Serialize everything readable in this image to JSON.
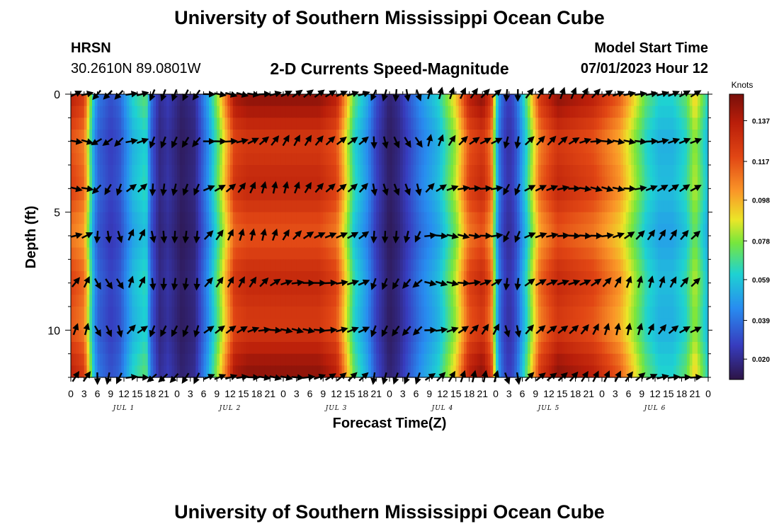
{
  "header": {
    "title": "University of Southern Mississippi Ocean Cube",
    "station_id": "HRSN",
    "station_coords": "30.2610N  89.0801W",
    "chart_title": "2-D Currents Speed-Magnitude",
    "model_start_label": "Model Start Time",
    "model_start_value": "07/01/2023 Hour 12"
  },
  "footer": {
    "title": "University of Southern Mississippi Ocean Cube"
  },
  "chart_data": {
    "type": "heatmap",
    "title": "2-D Currents Speed-Magnitude",
    "xlabel": "Forecast Time(Z)",
    "ylabel": "Depth (ft)",
    "colorbar_label": "Knots",
    "colorbar_ticks": [
      "0.020",
      "0.039",
      "0.059",
      "0.078",
      "0.098",
      "0.117",
      "0.137"
    ],
    "colorbar_tick_values": [
      0.02,
      0.039,
      0.059,
      0.078,
      0.098,
      0.117,
      0.137
    ],
    "colorbar_range": [
      0.01,
      0.15
    ],
    "x_range_hours": [
      0,
      144
    ],
    "x_tick_labels": [
      "0",
      "3",
      "6",
      "9",
      "12",
      "15",
      "18",
      "21",
      "0",
      "3",
      "6",
      "9",
      "12",
      "15",
      "18",
      "21",
      "0",
      "3",
      "6",
      "9",
      "12",
      "15",
      "18",
      "21",
      "0",
      "3",
      "6",
      "9",
      "12",
      "15",
      "18",
      "21",
      "0",
      "3",
      "6",
      "9",
      "12",
      "15",
      "18",
      "21",
      "0",
      "3",
      "6",
      "9",
      "12",
      "15",
      "18",
      "21",
      "0"
    ],
    "day_labels": [
      "JUL 1",
      "JUL 2",
      "JUL 3",
      "JUL 4",
      "JUL 5",
      "JUL 6"
    ],
    "y_range_ft": [
      0,
      12
    ],
    "y_ticks": [
      0,
      5,
      10
    ],
    "y_tick_labels": [
      "0",
      "5",
      "10"
    ],
    "y_reversed": true,
    "speed_profile": {
      "hours": [
        0,
        3,
        5,
        6,
        9,
        11,
        14,
        17,
        18,
        20,
        22,
        25,
        28,
        31,
        34,
        37,
        40,
        45,
        50,
        56,
        60,
        64,
        67,
        69,
        71,
        72,
        74,
        76,
        79,
        83,
        87,
        90,
        93,
        95,
        96,
        97,
        98,
        99,
        100,
        101,
        103,
        106,
        110,
        114,
        118,
        121,
        124,
        127,
        130,
        133,
        136,
        139,
        141,
        144
      ],
      "knots": [
        0.13,
        0.12,
        0.06,
        0.04,
        0.03,
        0.035,
        0.06,
        0.07,
        0.04,
        0.02,
        0.025,
        0.015,
        0.02,
        0.05,
        0.09,
        0.135,
        0.14,
        0.14,
        0.14,
        0.14,
        0.13,
        0.07,
        0.05,
        0.03,
        0.02,
        0.015,
        0.02,
        0.03,
        0.045,
        0.06,
        0.09,
        0.13,
        0.14,
        0.12,
        0.07,
        0.04,
        0.03,
        0.025,
        0.03,
        0.04,
        0.07,
        0.12,
        0.14,
        0.135,
        0.13,
        0.12,
        0.11,
        0.09,
        0.07,
        0.06,
        0.06,
        0.07,
        0.09,
        0.06
      ]
    },
    "vector_depths_ft": [
      0,
      2,
      4,
      6,
      8,
      10,
      12
    ]
  }
}
